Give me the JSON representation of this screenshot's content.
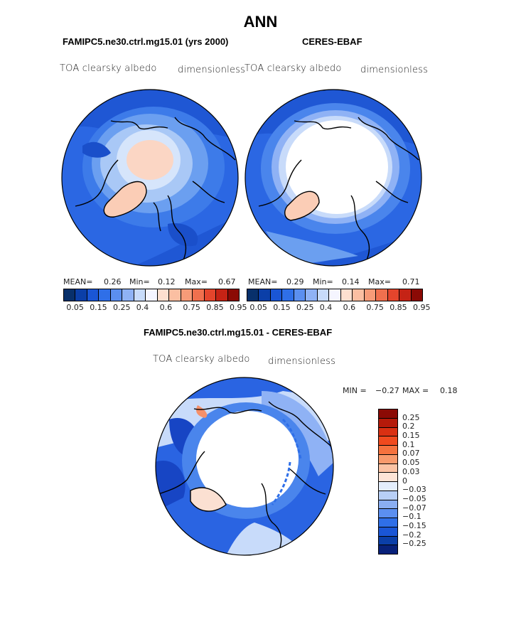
{
  "title": "ANN",
  "panels": [
    {
      "id": "model",
      "title": "FAMIPC5.ne30.ctrl.mg15.01 (yrs 2000)",
      "variable": "TOA clearsky albedo",
      "units": "dimensionless",
      "mean_label": "MEAN=",
      "mean": "0.26",
      "min_label": "Min=",
      "min": "0.12",
      "max_label": "Max=",
      "max": "0.67"
    },
    {
      "id": "obs",
      "title": "CERES-EBAF",
      "variable": "TOA clearsky albedo",
      "units": "dimensionless",
      "mean_label": "MEAN=",
      "mean": "0.29",
      "min_label": "Min=",
      "min": "0.14",
      "max_label": "Max=",
      "max": "0.71"
    }
  ],
  "diff": {
    "title": "FAMIPC5.ne30.ctrl.mg15.01 - CERES-EBAF",
    "variable": "TOA clearsky albedo",
    "units": "dimensionless",
    "min_label": "MIN =",
    "min": "−0.27",
    "max_label": "MAX =",
    "max": "0.18"
  },
  "colorbar_abs": {
    "ticks": [
      "0.05",
      "0.15",
      "0.25",
      "0.4",
      "0.6",
      "0.75",
      "0.85",
      "0.95"
    ],
    "colors": [
      "#08306b",
      "#0b3fa8",
      "#1a56d6",
      "#2f6fe8",
      "#5b8ff0",
      "#8fb2f5",
      "#c8dbfa",
      "#f5f5ff",
      "#fde0d0",
      "#fbbfa2",
      "#f79b78",
      "#f0704e",
      "#e4452c",
      "#c52315",
      "#8b0a05"
    ]
  },
  "colorbar_diff": {
    "ticks": [
      "0.25",
      "0.2",
      "0.15",
      "0.1",
      "0.07",
      "0.05",
      "0.03",
      "0",
      "−0.03",
      "−0.05",
      "−0.07",
      "−0.1",
      "−0.15",
      "−0.2",
      "−0.25"
    ],
    "colors": [
      "#8b0a05",
      "#b51a0a",
      "#d93012",
      "#f04a1e",
      "#f5723e",
      "#f89a6c",
      "#fbc3a4",
      "#fde4d6",
      "#e4eefc",
      "#b8cff6",
      "#8aaef2",
      "#5b8ff0",
      "#2f6fe8",
      "#1a56d6",
      "#0b3fa8",
      "#08217a"
    ]
  }
}
